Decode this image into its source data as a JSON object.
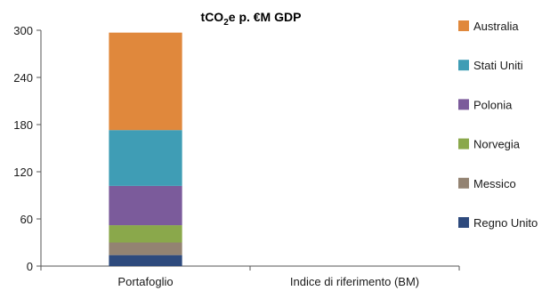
{
  "chart_data": {
    "type": "bar",
    "stacked": true,
    "title_parts": {
      "pre": "tCO",
      "sub": "2",
      "post": "e p. €M GDP"
    },
    "xlabel": "",
    "ylabel": "",
    "ylim": [
      0,
      300
    ],
    "yticks": [
      0,
      60,
      120,
      180,
      240,
      300
    ],
    "categories": [
      "Portafoglio",
      "Indice di riferimento (BM)"
    ],
    "legend_position": "right",
    "grid": false,
    "series": [
      {
        "name": "Regno Unito",
        "color": "#2e4a7d",
        "values": [
          14,
          0
        ]
      },
      {
        "name": "Messico",
        "color": "#938372",
        "values": [
          16,
          0
        ]
      },
      {
        "name": "Norvegia",
        "color": "#8aa84b",
        "values": [
          22,
          0
        ]
      },
      {
        "name": "Polonia",
        "color": "#7b5b9b",
        "values": [
          50,
          0
        ]
      },
      {
        "name": "Stati Uniti",
        "color": "#3f9db5",
        "values": [
          71,
          0
        ]
      },
      {
        "name": "Australia",
        "color": "#e0883c",
        "values": [
          124,
          0
        ]
      }
    ]
  }
}
